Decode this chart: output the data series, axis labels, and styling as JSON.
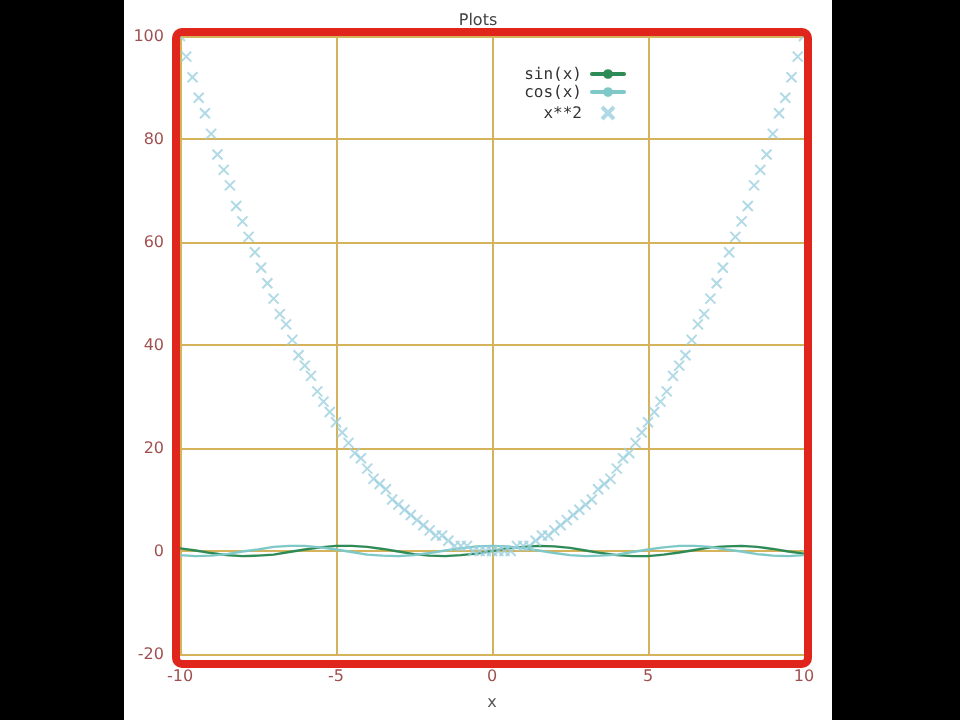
{
  "chart_data": {
    "type": "line",
    "title": "Plots",
    "xlabel": "x",
    "xlim": [
      -10,
      10
    ],
    "xticks": [
      -10,
      -5,
      0,
      5,
      10
    ],
    "ylim": [
      -20,
      100
    ],
    "yticks": [
      -20,
      0,
      20,
      40,
      60,
      80,
      100
    ],
    "grid": true,
    "legend": "top right",
    "series": [
      {
        "name": "sin(x)",
        "marker": "none",
        "color": "#2e8b57",
        "x": [
          -10,
          -9.5,
          -9,
          -8.5,
          -8,
          -7.5,
          -7,
          -6.5,
          -6,
          -5.5,
          -5,
          -4.5,
          -4,
          -3.5,
          -3,
          -2.5,
          -2,
          -1.5,
          -1,
          -0.5,
          0,
          0.5,
          1,
          1.5,
          2,
          2.5,
          3,
          3.5,
          4,
          4.5,
          5,
          5.5,
          6,
          6.5,
          7,
          7.5,
          8,
          8.5,
          9,
          9.5,
          10
        ],
        "values": [
          0.5,
          0.1,
          -0.4,
          -0.8,
          -1.0,
          -0.9,
          -0.7,
          -0.2,
          0.3,
          0.7,
          1.0,
          1.0,
          0.8,
          0.4,
          -0.1,
          -0.6,
          -0.9,
          -1.0,
          -0.8,
          -0.5,
          0,
          0.5,
          0.8,
          1.0,
          0.9,
          0.6,
          0.1,
          -0.4,
          -0.8,
          -1.0,
          -1.0,
          -0.7,
          -0.3,
          0.2,
          0.7,
          0.9,
          1.0,
          0.8,
          0.4,
          -0.1,
          -0.5
        ]
      },
      {
        "name": "cos(x)",
        "marker": "none",
        "color": "#7ec8c8",
        "x": [
          -10,
          -9.5,
          -9,
          -8.5,
          -8,
          -7.5,
          -7,
          -6.5,
          -6,
          -5.5,
          -5,
          -4.5,
          -4,
          -3.5,
          -3,
          -2.5,
          -2,
          -1.5,
          -1,
          -0.5,
          0,
          0.5,
          1,
          1.5,
          2,
          2.5,
          3,
          3.5,
          4,
          4.5,
          5,
          5.5,
          6,
          6.5,
          7,
          7.5,
          8,
          8.5,
          9,
          9.5,
          10
        ],
        "values": [
          -0.8,
          -1.0,
          -0.9,
          -0.6,
          -0.1,
          0.3,
          0.8,
          1.0,
          1.0,
          0.7,
          0.3,
          -0.2,
          -0.7,
          -0.9,
          -1.0,
          -0.8,
          -0.4,
          0.1,
          0.5,
          0.9,
          1,
          0.9,
          0.5,
          0.1,
          -0.4,
          -0.8,
          -1.0,
          -0.9,
          -0.7,
          -0.2,
          0.3,
          0.7,
          1.0,
          1.0,
          0.8,
          0.3,
          -0.1,
          -0.6,
          -0.9,
          -1.0,
          -0.8
        ]
      },
      {
        "name": "x**2",
        "type": "scatter",
        "marker": "cross",
        "color": "#9ccfe0",
        "x": [
          -10,
          -9.8,
          -9.6,
          -9.4,
          -9.2,
          -9,
          -8.8,
          -8.6,
          -8.4,
          -8.2,
          -8,
          -7.8,
          -7.6,
          -7.4,
          -7.2,
          -7,
          -6.8,
          -6.6,
          -6.4,
          -6.2,
          -6,
          -5.8,
          -5.6,
          -5.4,
          -5.2,
          -5,
          -4.8,
          -4.6,
          -4.4,
          -4.2,
          -4,
          -3.8,
          -3.6,
          -3.4,
          -3.2,
          -3,
          -2.8,
          -2.6,
          -2.4,
          -2.2,
          -2,
          -1.8,
          -1.6,
          -1.4,
          -1.2,
          -1,
          -0.8,
          -0.6,
          -0.4,
          -0.2,
          0,
          0.2,
          0.4,
          0.6,
          0.8,
          1,
          1.2,
          1.4,
          1.6,
          1.8,
          2,
          2.2,
          2.4,
          2.6,
          2.8,
          3,
          3.2,
          3.4,
          3.6,
          3.8,
          4,
          4.2,
          4.4,
          4.6,
          4.8,
          5,
          5.2,
          5.4,
          5.6,
          5.8,
          6,
          6.2,
          6.4,
          6.6,
          6.8,
          7,
          7.2,
          7.4,
          7.6,
          7.8,
          8,
          8.2,
          8.4,
          8.6,
          8.8,
          9,
          9.2,
          9.4,
          9.6,
          9.8,
          10
        ],
        "values": [
          100,
          96,
          92,
          88,
          85,
          81,
          77,
          74,
          71,
          67,
          64,
          61,
          58,
          55,
          52,
          49,
          46,
          44,
          41,
          38,
          36,
          34,
          31,
          29,
          27,
          25,
          23,
          21,
          19,
          18,
          16,
          14,
          13,
          12,
          10,
          9,
          8,
          7,
          6,
          5,
          4,
          3,
          3,
          2,
          1,
          1,
          1,
          0,
          0,
          0,
          0,
          0,
          0,
          0,
          1,
          1,
          1,
          2,
          3,
          3,
          4,
          5,
          6,
          7,
          8,
          9,
          10,
          12,
          13,
          14,
          16,
          18,
          19,
          21,
          23,
          25,
          27,
          29,
          31,
          34,
          36,
          38,
          41,
          44,
          46,
          49,
          52,
          55,
          58,
          61,
          64,
          67,
          71,
          74,
          77,
          81,
          85,
          88,
          92,
          96,
          100
        ]
      }
    ]
  }
}
